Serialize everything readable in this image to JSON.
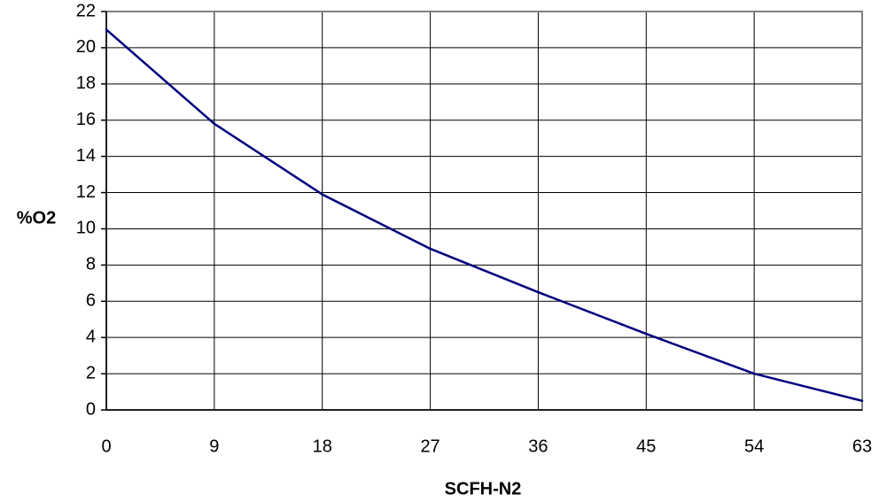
{
  "chart_data": {
    "type": "line",
    "title": "",
    "xlabel": "SCFH-N2",
    "ylabel": "%O2",
    "xlim": [
      0,
      63
    ],
    "ylim": [
      0,
      22
    ],
    "xticks": [
      0,
      9,
      18,
      27,
      36,
      45,
      54,
      63
    ],
    "yticks": [
      0,
      2,
      4,
      6,
      8,
      10,
      12,
      14,
      16,
      18,
      20,
      22
    ],
    "grid": true,
    "legend": "none",
    "series": [
      {
        "x": [
          0,
          9,
          18,
          27,
          36,
          45,
          54,
          63
        ],
        "y": [
          21.0,
          15.8,
          11.9,
          8.9,
          6.5,
          4.2,
          2.0,
          0.5
        ],
        "color": "#000080"
      }
    ]
  }
}
